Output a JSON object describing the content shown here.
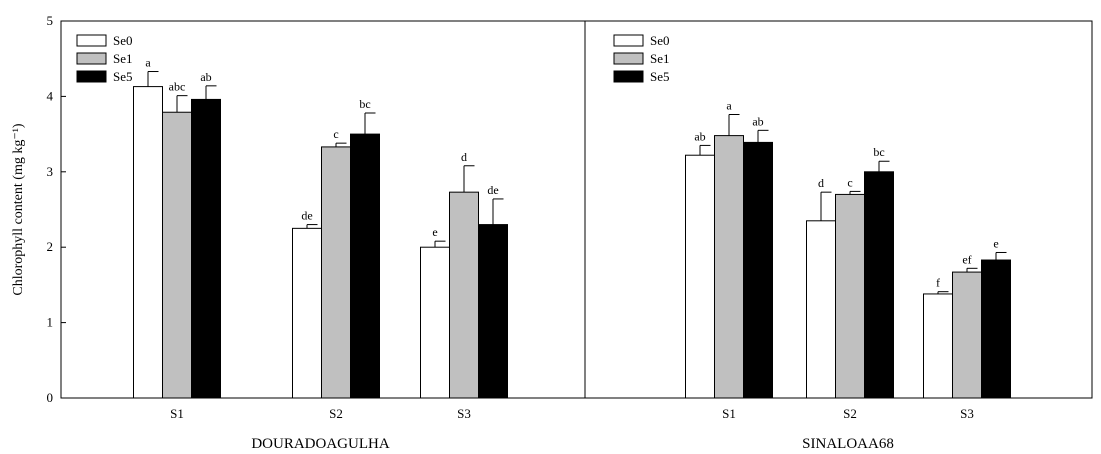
{
  "chart_data": {
    "type": "bar",
    "ylabel": "Chlorophyll content (mg kg⁻¹)",
    "ylim": [
      0,
      5
    ],
    "yticks": [
      0,
      1,
      2,
      3,
      4,
      5
    ],
    "legend": {
      "placement": "top-left",
      "entries": [
        {
          "name": "Se0",
          "color": "#ffffff"
        },
        {
          "name": "Se1",
          "color": "#c0c0c0"
        },
        {
          "name": "Se5",
          "color": "#000000"
        }
      ]
    },
    "panels": [
      {
        "title": "DOURADOAGULHA",
        "categories": [
          "S1",
          "S2",
          "S3"
        ],
        "series": [
          {
            "name": "Se0",
            "values": [
              4.13,
              2.25,
              2.0
            ],
            "errors": [
              0.2,
              0.05,
              0.08
            ],
            "labels": [
              "a",
              "de",
              "e"
            ]
          },
          {
            "name": "Se1",
            "values": [
              3.79,
              3.33,
              2.73
            ],
            "errors": [
              0.22,
              0.05,
              0.35
            ],
            "labels": [
              "abc",
              "c",
              "d"
            ]
          },
          {
            "name": "Se5",
            "values": [
              3.96,
              3.5,
              2.3
            ],
            "errors": [
              0.18,
              0.28,
              0.34
            ],
            "labels": [
              "ab",
              "bc",
              "de"
            ]
          }
        ]
      },
      {
        "title": "SINALOAA68",
        "categories": [
          "S1",
          "S2",
          "S3"
        ],
        "series": [
          {
            "name": "Se0",
            "values": [
              3.22,
              2.35,
              1.38
            ],
            "errors": [
              0.13,
              0.38,
              0.03
            ],
            "labels": [
              "ab",
              "d",
              "f"
            ]
          },
          {
            "name": "Se1",
            "values": [
              3.48,
              2.7,
              1.67
            ],
            "errors": [
              0.28,
              0.04,
              0.05
            ],
            "labels": [
              "a",
              "c",
              "ef"
            ]
          },
          {
            "name": "Se5",
            "values": [
              3.39,
              3.0,
              1.83
            ],
            "errors": [
              0.16,
              0.14,
              0.1
            ],
            "labels": [
              "ab",
              "bc",
              "e"
            ]
          }
        ]
      }
    ]
  }
}
